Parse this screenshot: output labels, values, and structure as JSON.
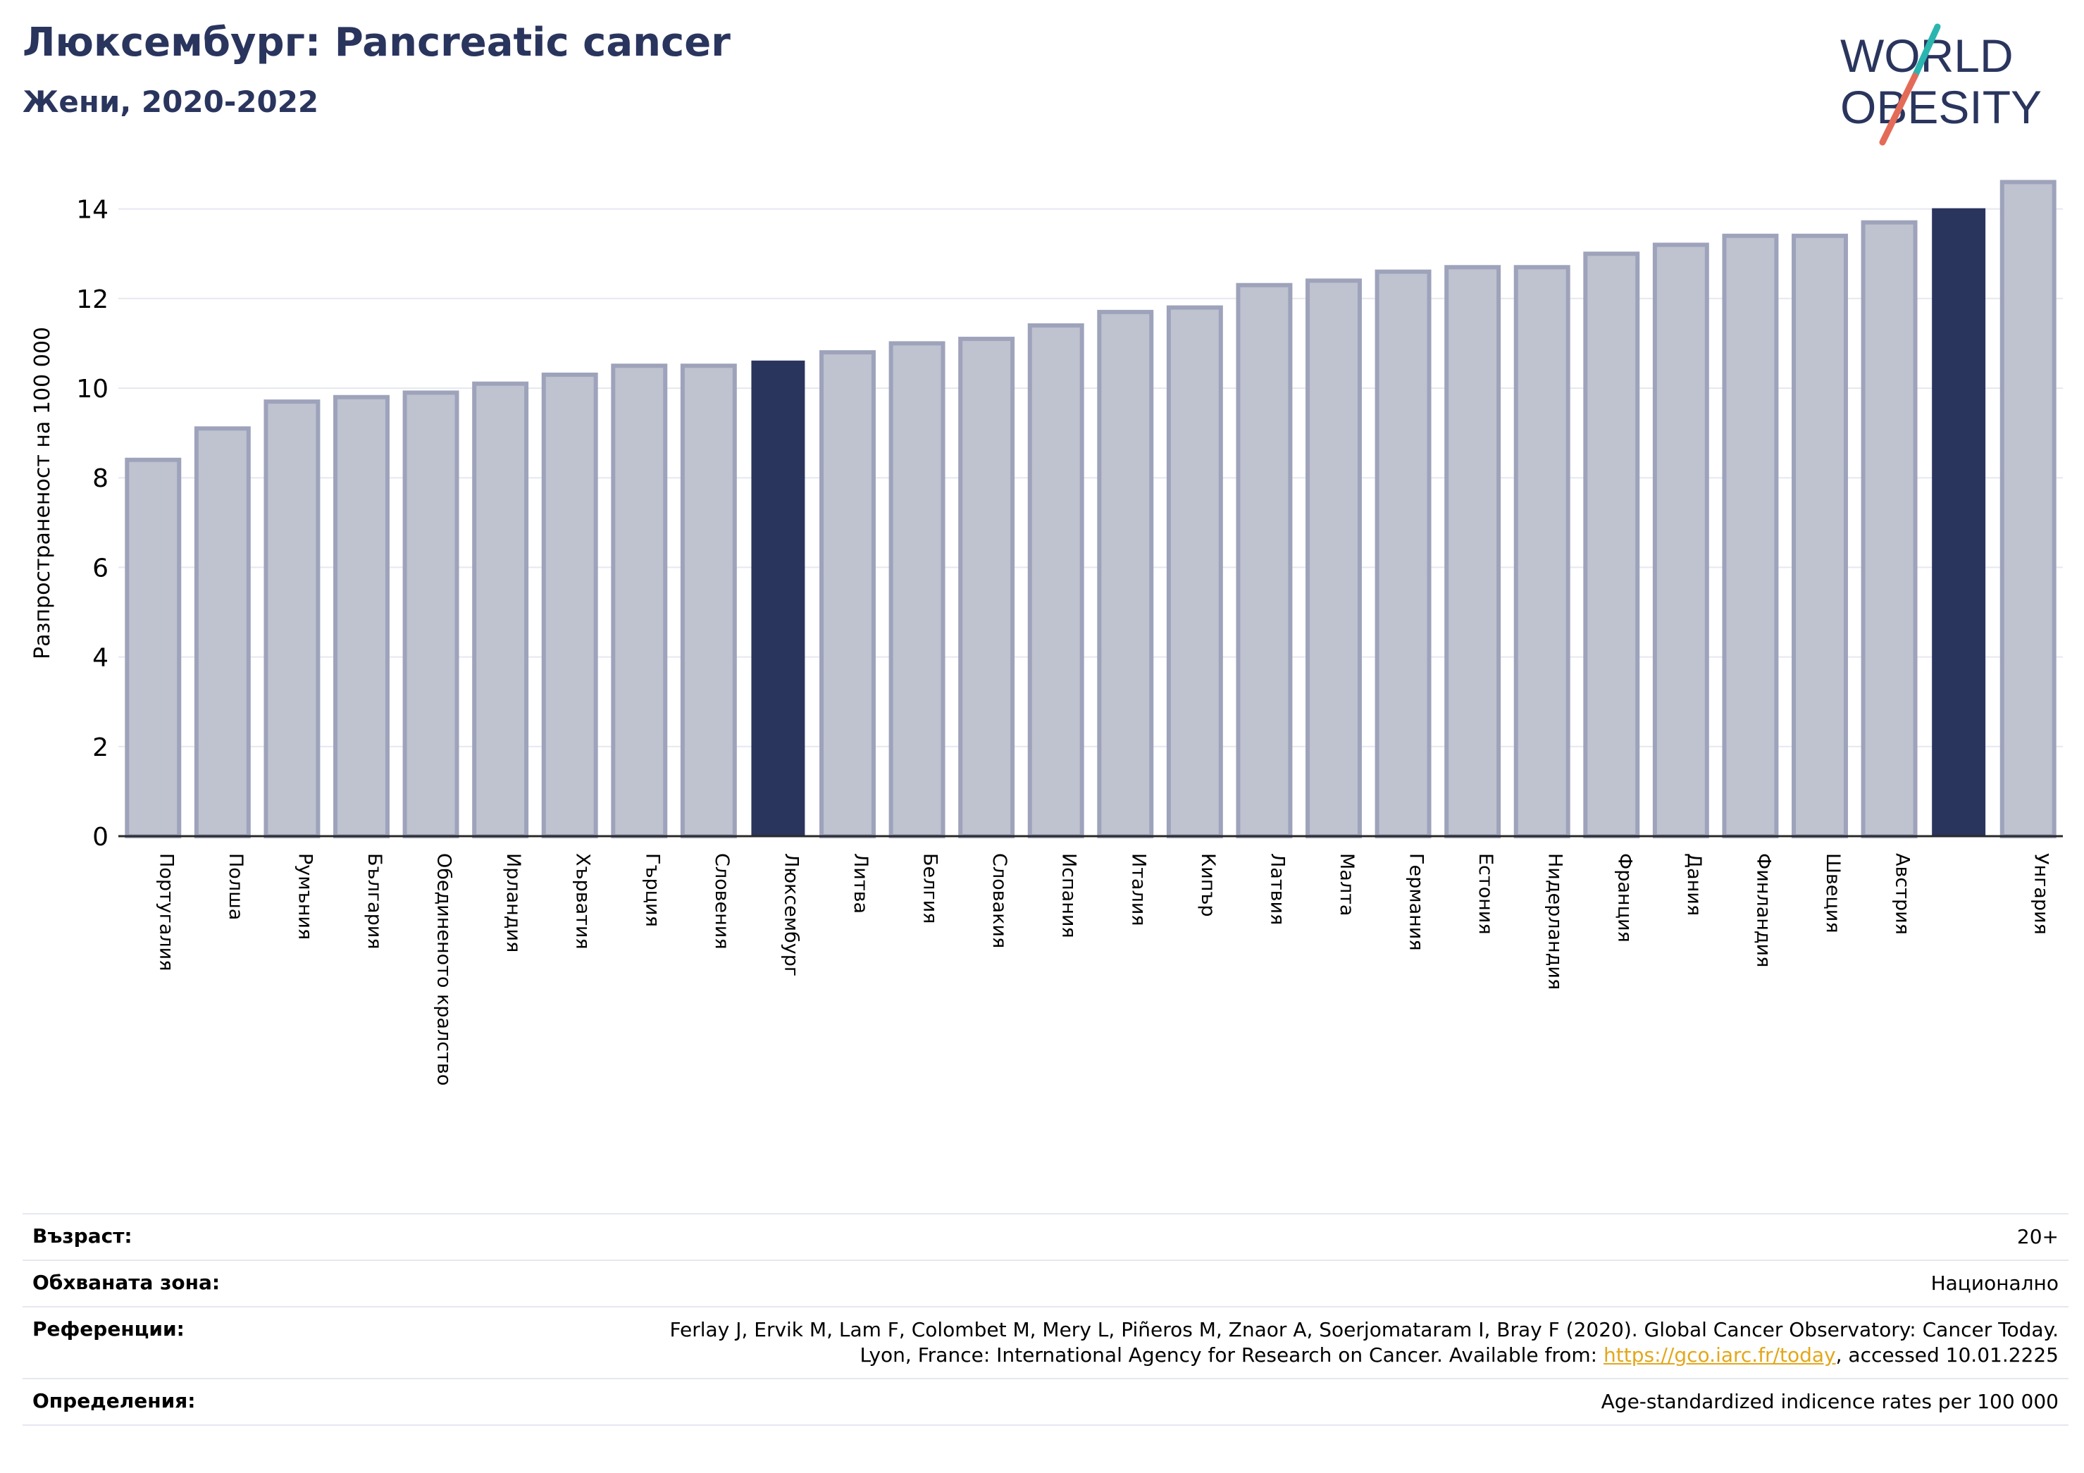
{
  "header": {
    "title": "Люксембург: Pancreatic cancer",
    "subtitle": "Жени, 2020-2022"
  },
  "logo": {
    "line1": "WORLD",
    "line2": "OBESITY",
    "colors": {
      "text": "#2a355e",
      "slash_top": "#2ab5b0",
      "slash_bottom": "#e46b57"
    }
  },
  "colors": {
    "highlight": "#2a355e",
    "bar_fill": "#bfc2cf",
    "bar_edge": "#9ea3bb",
    "grid": "#e6e8f0",
    "title": "#2a355e",
    "link": "#e3a71b"
  },
  "chart_data": {
    "type": "bar",
    "ylabel": "Разпространеност  на 100 000",
    "ylim": [
      0,
      15
    ],
    "yticks": [
      0,
      2,
      4,
      6,
      8,
      10,
      12,
      14
    ],
    "grid": true,
    "categories": [
      "Португалия",
      "Полша",
      "Румъния",
      "България",
      "Обединеното кралство",
      "Ирландия",
      "Хърватия",
      "Гърция",
      "Словения",
      "Люксембург",
      "Литва",
      "Белгия",
      "Словакия",
      "Испания",
      "Италия",
      "Кипър",
      "Латвия",
      "Малта",
      "Германия",
      "Естония",
      "Нидерландия",
      "Франция",
      "Дания",
      "Финландия",
      "Швеция",
      "Австрия",
      "",
      "Унгария"
    ],
    "values": [
      8.4,
      9.1,
      9.7,
      9.8,
      9.9,
      10.1,
      10.3,
      10.5,
      10.5,
      10.6,
      10.8,
      11.0,
      11.1,
      11.4,
      11.7,
      11.8,
      12.3,
      12.4,
      12.6,
      12.7,
      12.7,
      13.0,
      13.2,
      13.4,
      13.4,
      13.7,
      14.0,
      14.6
    ],
    "highlighted": [
      9,
      26
    ]
  },
  "info_table": [
    {
      "label": "Възраст:",
      "value": "20+"
    },
    {
      "label": "Обхваната зона:",
      "value": "Национално"
    },
    {
      "label": "Референции:",
      "value_line1": "Ferlay J, Ervik M, Lam F, Colombet M, Mery L, Piñeros M, Znaor A, Soerjomataram I, Bray F (2020). Global Cancer Observatory: Cancer Today.",
      "value_line2_pre": "Lyon, France: International Agency for Research on Cancer. Available from: ",
      "link": "https://gco.iarc.fr/today",
      "value_line2_post": ", accessed 10.01.2225"
    },
    {
      "label": "Определения:",
      "value": "Age-standardized indicence rates per 100 000"
    }
  ]
}
